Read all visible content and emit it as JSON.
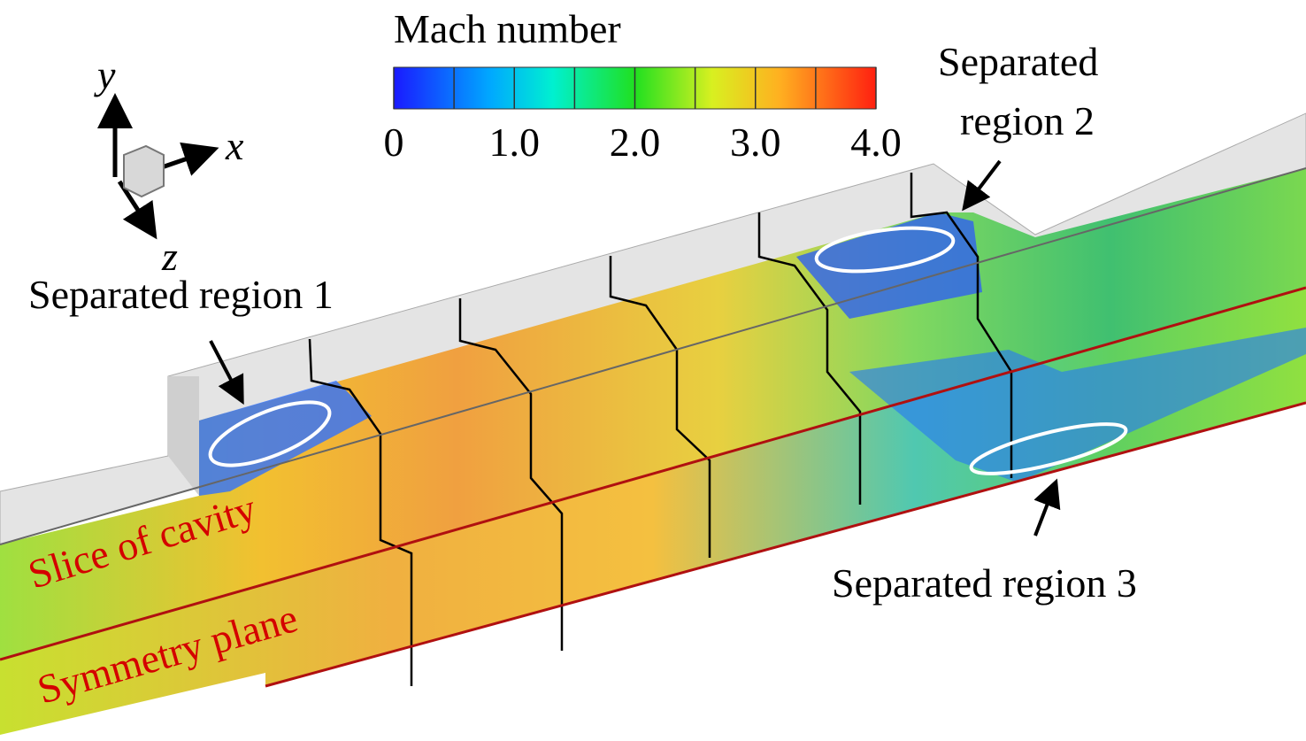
{
  "colorbar": {
    "title": "Mach number",
    "range": [
      0,
      4
    ],
    "ticks": [
      0,
      {
        "value": 1,
        "label": "1.0"
      },
      {
        "value": 2,
        "label": "2.0"
      },
      {
        "value": 3,
        "label": "3.0"
      },
      {
        "value": 4,
        "label": "4.0"
      }
    ]
  },
  "axes": {
    "x": "x",
    "y": "y",
    "z": "z"
  },
  "annotations": {
    "region1": "Separated region 1",
    "region2": [
      "Separated",
      "region 2"
    ],
    "region3": "Separated region 3",
    "slice": "Slice of cavity",
    "symmetry": "Symmetry plane"
  }
}
